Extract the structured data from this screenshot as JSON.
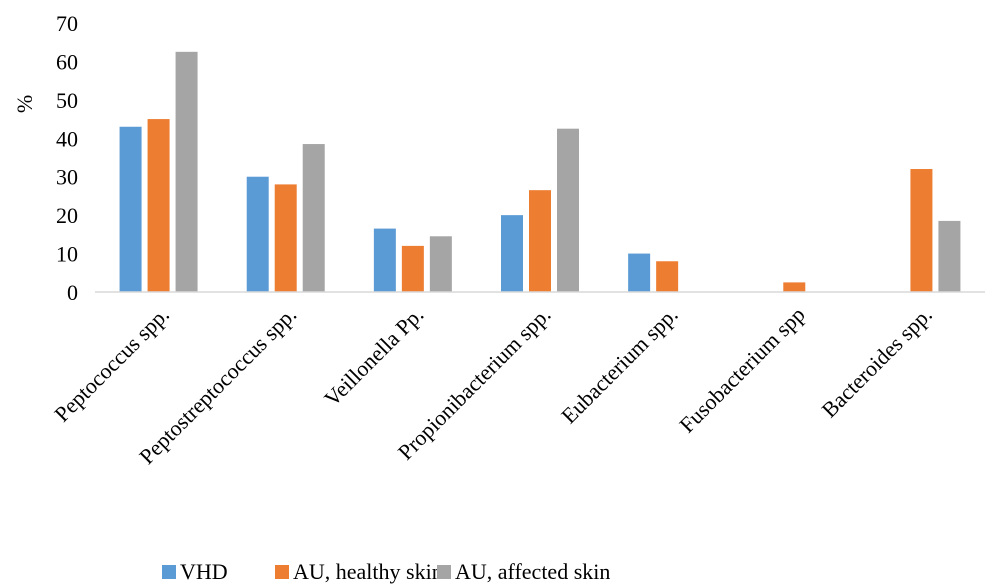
{
  "chart_data": {
    "type": "bar",
    "ylabel": "%",
    "xlabel": "",
    "ylim": [
      0,
      70
    ],
    "yticks": [
      0,
      10,
      20,
      30,
      40,
      50,
      60,
      70
    ],
    "grid": false,
    "legend_position": "bottom",
    "categories": [
      "Peptococcus spp.",
      "Peptostreptococcus spp.",
      "Veillonella Pp.",
      "Propionibacterium spp.",
      "Eubacterium spp.",
      "Fusobacterium spp",
      "Bacteroides spp."
    ],
    "series": [
      {
        "name": "VHD",
        "color": "#5B9BD5",
        "values": [
          43,
          30,
          16.5,
          20,
          10,
          0,
          0
        ]
      },
      {
        "name": "AU, healthy skin",
        "color": "#ED7D31",
        "values": [
          45,
          28,
          12,
          26.5,
          8,
          2.5,
          32
        ]
      },
      {
        "name": "AU, affected skin",
        "color": "#A5A5A5",
        "values": [
          62.5,
          38.5,
          14.5,
          42.5,
          0,
          0,
          18.5
        ]
      }
    ]
  }
}
